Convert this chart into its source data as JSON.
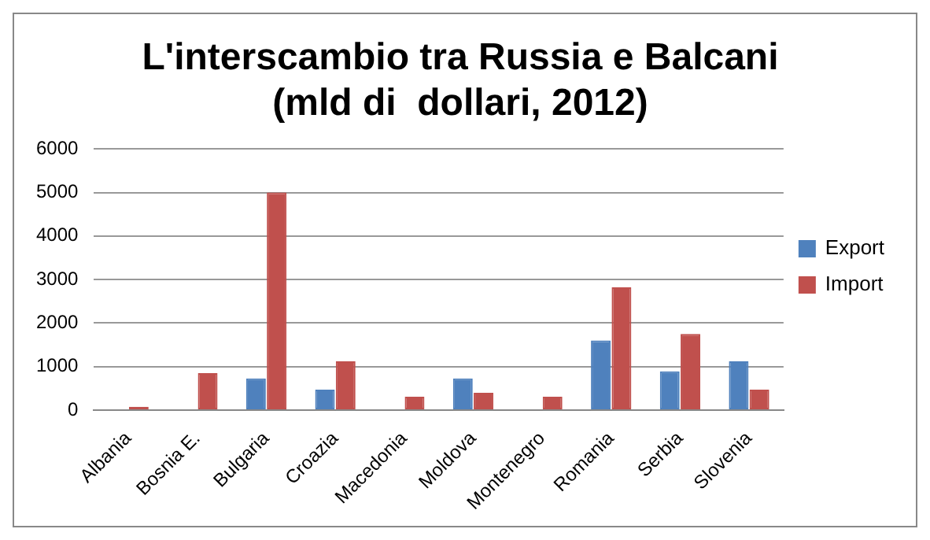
{
  "chart_data": {
    "type": "bar",
    "title": "L'interscambio tra Russia e Balcani\n(mld di  dollari, 2012)",
    "categories": [
      "Albania",
      "Bosnia E.",
      "Bulgaria",
      "Croazia",
      "Macedonia",
      "Moldova",
      "Montenegro",
      "Romania",
      "Serbia",
      "Slovenia"
    ],
    "series": [
      {
        "name": "Export",
        "color": "#4f81bd",
        "values": [
          0,
          20,
          730,
          470,
          20,
          730,
          20,
          1600,
          890,
          1120
        ]
      },
      {
        "name": "Import",
        "color": "#c0504d",
        "values": [
          80,
          850,
          5000,
          1120,
          310,
          400,
          310,
          2820,
          1750,
          470
        ]
      }
    ],
    "ylim": [
      0,
      6000
    ],
    "yticks": [
      0,
      1000,
      2000,
      3000,
      4000,
      5000,
      6000
    ],
    "grid": "y",
    "legend": "right"
  }
}
